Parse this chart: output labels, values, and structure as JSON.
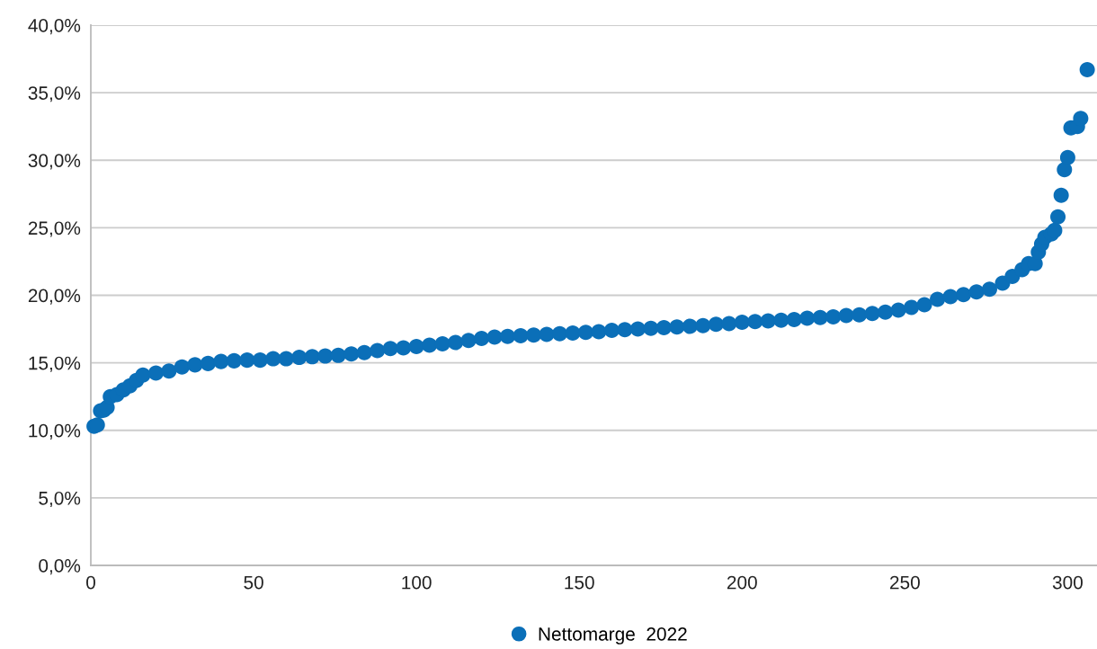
{
  "chart_data": {
    "type": "scatter",
    "x": [
      1,
      2,
      3,
      4,
      5,
      6,
      8,
      10,
      12,
      14,
      16,
      20,
      24,
      28,
      32,
      36,
      40,
      44,
      48,
      52,
      56,
      60,
      64,
      68,
      72,
      76,
      80,
      84,
      88,
      92,
      96,
      100,
      104,
      108,
      112,
      116,
      120,
      124,
      128,
      132,
      136,
      140,
      144,
      148,
      152,
      156,
      160,
      164,
      168,
      172,
      176,
      180,
      184,
      188,
      192,
      196,
      200,
      204,
      208,
      212,
      216,
      220,
      224,
      228,
      232,
      236,
      240,
      244,
      248,
      252,
      256,
      260,
      264,
      268,
      272,
      276,
      280,
      283,
      286,
      288,
      290,
      291,
      292,
      293,
      295,
      296,
      297,
      298,
      299,
      300,
      301,
      303,
      304,
      306
    ],
    "series": [
      {
        "name": "Nettomarge  2022",
        "color": "#0b6fb8",
        "values": [
          10.3,
          10.4,
          11.45,
          11.5,
          11.7,
          12.5,
          12.65,
          13.0,
          13.3,
          13.7,
          14.1,
          14.25,
          14.4,
          14.7,
          14.85,
          14.95,
          15.1,
          15.15,
          15.2,
          15.2,
          15.3,
          15.3,
          15.4,
          15.45,
          15.5,
          15.55,
          15.65,
          15.75,
          15.9,
          16.05,
          16.1,
          16.2,
          16.3,
          16.4,
          16.5,
          16.65,
          16.8,
          16.9,
          16.95,
          17.0,
          17.05,
          17.1,
          17.15,
          17.2,
          17.25,
          17.3,
          17.4,
          17.45,
          17.5,
          17.55,
          17.6,
          17.65,
          17.7,
          17.75,
          17.85,
          17.9,
          18.0,
          18.05,
          18.1,
          18.15,
          18.2,
          18.3,
          18.35,
          18.4,
          18.5,
          18.55,
          18.65,
          18.75,
          18.9,
          19.1,
          19.3,
          19.7,
          19.9,
          20.05,
          20.25,
          20.45,
          20.9,
          21.4,
          21.9,
          22.35,
          22.35,
          23.2,
          23.8,
          24.3,
          24.55,
          24.8,
          25.8,
          27.4,
          29.3,
          30.2,
          32.4,
          32.5,
          33.1,
          36.7
        ]
      }
    ],
    "xlim": [
      0,
      309
    ],
    "xticks": [
      0,
      50,
      100,
      150,
      200,
      250,
      300
    ],
    "ylim": [
      0,
      40
    ],
    "yticks": [
      {
        "value": 0,
        "label": "0,0%"
      },
      {
        "value": 5,
        "label": "5,0%"
      },
      {
        "value": 10,
        "label": "10,0%"
      },
      {
        "value": 15,
        "label": "15,0%"
      },
      {
        "value": 20,
        "label": "20,0%"
      },
      {
        "value": 25,
        "label": "25,0%"
      },
      {
        "value": 30,
        "label": "30,0%"
      },
      {
        "value": 35,
        "label": "35,0%"
      },
      {
        "value": 40,
        "label": "40,0%"
      }
    ],
    "grid": "y",
    "legend": "bottom",
    "marker": "circle"
  }
}
